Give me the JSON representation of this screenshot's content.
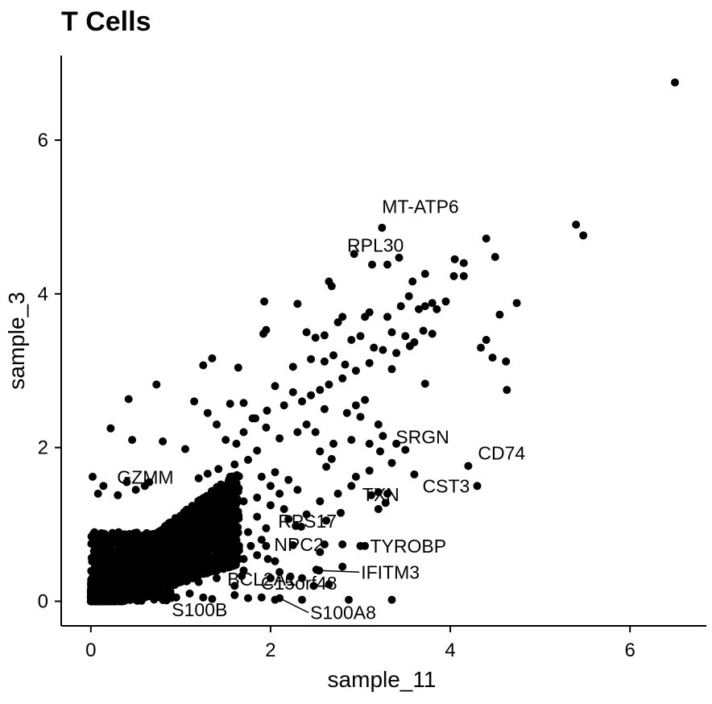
{
  "chart_data": {
    "type": "scatter",
    "title": "T Cells",
    "xlabel": "sample_11",
    "ylabel": "sample_3",
    "xlim": [
      -0.33,
      6.85
    ],
    "ylim": [
      -0.32,
      7.1
    ],
    "x_ticks": [
      0,
      2,
      4,
      6
    ],
    "y_ticks": [
      0,
      2,
      4,
      6
    ],
    "grid": false,
    "point_color": "#000000",
    "labeled_points": [
      {
        "label": "MT-ATP6",
        "x": 3.24,
        "y": 4.86
      },
      {
        "label": "RPL30",
        "x": 3.3,
        "y": 4.38
      },
      {
        "label": "SRGN",
        "x": 3.5,
        "y": 1.97
      },
      {
        "label": "CD74",
        "x": 4.2,
        "y": 1.76
      },
      {
        "label": "CST3",
        "x": 4.3,
        "y": 1.5
      },
      {
        "label": "GZMM",
        "x": 0.65,
        "y": 1.55
      },
      {
        "label": "RPS17",
        "x": 2.28,
        "y": 0.98
      },
      {
        "label": "TXN",
        "x": 3.2,
        "y": 1.2
      },
      {
        "label": "NPC2",
        "x": 1.95,
        "y": 0.72
      },
      {
        "label": "TYROBP",
        "x": 3.0,
        "y": 0.72
      },
      {
        "label": "IFITM3",
        "x": 2.54,
        "y": 0.4
      },
      {
        "label": "BCL2A1",
        "x": 1.68,
        "y": 0.33
      },
      {
        "label": "C15orf48",
        "x": 2.0,
        "y": 0.3
      },
      {
        "label": "S100B",
        "x": 1.6,
        "y": 0.08
      },
      {
        "label": "S100A8",
        "x": 2.1,
        "y": 0.04
      }
    ],
    "points": [
      [
        6.5,
        6.75
      ],
      [
        5.4,
        4.9
      ],
      [
        5.48,
        4.76
      ],
      [
        4.4,
        4.72
      ],
      [
        4.05,
        4.45
      ],
      [
        4.5,
        4.48
      ],
      [
        4.15,
        4.4
      ],
      [
        4.15,
        4.23
      ],
      [
        4.04,
        4.23
      ],
      [
        4.74,
        3.88
      ],
      [
        4.55,
        3.73
      ],
      [
        3.8,
        3.88
      ],
      [
        3.72,
        3.84
      ],
      [
        3.95,
        3.9
      ],
      [
        4.34,
        3.3
      ],
      [
        4.4,
        3.4
      ],
      [
        4.47,
        3.17
      ],
      [
        4.62,
        3.12
      ],
      [
        4.63,
        2.75
      ],
      [
        3.72,
        2.83
      ],
      [
        2.93,
        4.52
      ],
      [
        3.13,
        4.38
      ],
      [
        3.43,
        4.47
      ],
      [
        3.58,
        4.16
      ],
      [
        3.72,
        4.26
      ],
      [
        2.65,
        4.16
      ],
      [
        2.68,
        4.1
      ],
      [
        3.54,
        3.97
      ],
      [
        3.45,
        3.84
      ],
      [
        3.65,
        3.8
      ],
      [
        3.85,
        3.8
      ],
      [
        3.1,
        3.76
      ],
      [
        3.05,
        3.7
      ],
      [
        2.8,
        3.7
      ],
      [
        2.75,
        3.63
      ],
      [
        3.3,
        3.7
      ],
      [
        3.35,
        3.5
      ],
      [
        3.5,
        3.45
      ],
      [
        3.6,
        3.37
      ],
      [
        3.7,
        3.52
      ],
      [
        3.8,
        3.48
      ],
      [
        3.55,
        3.32
      ],
      [
        3.4,
        3.23
      ],
      [
        3.25,
        3.27
      ],
      [
        3.15,
        3.3
      ],
      [
        3.0,
        3.45
      ],
      [
        2.9,
        3.4
      ],
      [
        2.6,
        3.46
      ],
      [
        2.4,
        3.5
      ],
      [
        2.5,
        3.43
      ],
      [
        2.3,
        3.87
      ],
      [
        1.93,
        3.9
      ],
      [
        1.95,
        3.53
      ],
      [
        1.92,
        3.48
      ],
      [
        2.25,
        3.05
      ],
      [
        2.45,
        3.15
      ],
      [
        2.6,
        3.12
      ],
      [
        2.7,
        3.2
      ],
      [
        2.83,
        3.08
      ],
      [
        2.95,
        3.0
      ],
      [
        3.1,
        3.1
      ],
      [
        3.35,
        3.02
      ],
      [
        2.8,
        2.9
      ],
      [
        2.65,
        2.82
      ],
      [
        2.55,
        2.75
      ],
      [
        2.45,
        2.68
      ],
      [
        2.25,
        2.72
      ],
      [
        2.05,
        2.8
      ],
      [
        2.35,
        2.6
      ],
      [
        2.6,
        2.5
      ],
      [
        2.85,
        2.45
      ],
      [
        2.95,
        2.55
      ],
      [
        3.05,
        2.62
      ],
      [
        3.0,
        2.4
      ],
      [
        2.15,
        2.55
      ],
      [
        1.96,
        2.48
      ],
      [
        1.83,
        2.38
      ],
      [
        1.95,
        2.26
      ],
      [
        2.1,
        2.12
      ],
      [
        2.3,
        2.2
      ],
      [
        2.4,
        2.3
      ],
      [
        2.5,
        2.2
      ],
      [
        2.7,
        2.05
      ],
      [
        2.9,
        2.1
      ],
      [
        3.1,
        2.05
      ],
      [
        3.2,
        2.3
      ],
      [
        3.25,
        2.15
      ],
      [
        3.4,
        2.05
      ],
      [
        3.22,
        1.95
      ],
      [
        3.1,
        1.7
      ],
      [
        3.35,
        1.8
      ],
      [
        3.3,
        1.4
      ],
      [
        3.2,
        1.42
      ],
      [
        3.12,
        1.38
      ],
      [
        3.28,
        1.28
      ],
      [
        3.6,
        1.65
      ],
      [
        2.95,
        1.62
      ],
      [
        2.9,
        1.5
      ],
      [
        2.75,
        1.4
      ],
      [
        2.78,
        1.15
      ],
      [
        2.4,
        1.13
      ],
      [
        2.62,
        1.05
      ],
      [
        2.34,
        0.97
      ],
      [
        2.55,
        1.3
      ],
      [
        2.62,
        1.75
      ],
      [
        2.55,
        1.95
      ],
      [
        2.68,
        1.85
      ],
      [
        1.25,
        3.07
      ],
      [
        1.35,
        3.16
      ],
      [
        1.64,
        3.04
      ],
      [
        0.73,
        2.82
      ],
      [
        1.15,
        2.6
      ],
      [
        0.42,
        2.63
      ],
      [
        0.22,
        2.25
      ],
      [
        0.46,
        2.1
      ],
      [
        0.8,
        2.08
      ],
      [
        1.05,
        1.98
      ],
      [
        1.3,
        2.45
      ],
      [
        1.4,
        2.3
      ],
      [
        1.55,
        2.57
      ],
      [
        1.7,
        2.58
      ],
      [
        1.8,
        2.38
      ],
      [
        1.7,
        2.2
      ],
      [
        1.62,
        2.05
      ],
      [
        1.5,
        2.1
      ],
      [
        1.85,
        1.96
      ],
      [
        1.75,
        1.84
      ],
      [
        1.6,
        1.78
      ],
      [
        1.42,
        1.72
      ],
      [
        1.3,
        1.66
      ],
      [
        1.2,
        1.6
      ],
      [
        1.9,
        1.62
      ],
      [
        2.05,
        1.68
      ],
      [
        2.0,
        1.5
      ],
      [
        2.1,
        1.4
      ],
      [
        2.2,
        1.58
      ],
      [
        2.3,
        1.45
      ],
      [
        2.15,
        1.2
      ],
      [
        2.2,
        1.07
      ],
      [
        2.0,
        1.25
      ],
      [
        1.85,
        1.1
      ],
      [
        1.95,
        0.95
      ],
      [
        1.9,
        0.8
      ],
      [
        1.75,
        0.9
      ],
      [
        1.85,
        0.6
      ],
      [
        2.05,
        0.52
      ],
      [
        2.22,
        0.32
      ],
      [
        2.1,
        0.38
      ],
      [
        2.6,
        0.74
      ],
      [
        2.55,
        0.64
      ],
      [
        2.8,
        0.74
      ],
      [
        3.05,
        0.72
      ],
      [
        2.51,
        0.41
      ],
      [
        2.8,
        0.45
      ],
      [
        2.65,
        0.22
      ],
      [
        1.97,
        0.55
      ],
      [
        1.7,
        0.4
      ],
      [
        1.6,
        0.2
      ],
      [
        1.4,
        0.3
      ],
      [
        2.35,
        0.3
      ],
      [
        2.48,
        0.2
      ],
      [
        1.9,
        0.05
      ],
      [
        2.05,
        0.02
      ],
      [
        2.35,
        0.02
      ],
      [
        2.87,
        0.02
      ],
      [
        3.35,
        0.02
      ],
      [
        1.2,
        0.25
      ],
      [
        1.1,
        0.1
      ],
      [
        1.25,
        0.05
      ],
      [
        1.75,
        0.04
      ],
      [
        1.35,
        0.03
      ],
      [
        0.95,
        0.05
      ],
      [
        1.0,
        0.35
      ],
      [
        2.25,
        0.73
      ],
      [
        1.65,
        0.72
      ],
      [
        1.78,
        0.72
      ],
      [
        1.7,
        0.55
      ],
      [
        1.55,
        0.62
      ],
      [
        1.5,
        0.9
      ],
      [
        1.5,
        1.15
      ],
      [
        1.6,
        1.2
      ],
      [
        1.7,
        1.3
      ],
      [
        1.85,
        1.35
      ],
      [
        1.62,
        1.5
      ],
      [
        1.5,
        1.42
      ],
      [
        1.55,
        1.62
      ],
      [
        0.02,
        1.62
      ],
      [
        0.08,
        1.4
      ],
      [
        0.14,
        1.5
      ],
      [
        0.4,
        1.55
      ],
      [
        0.5,
        1.45
      ],
      [
        0.6,
        1.5
      ],
      [
        0.3,
        1.38
      ]
    ]
  }
}
